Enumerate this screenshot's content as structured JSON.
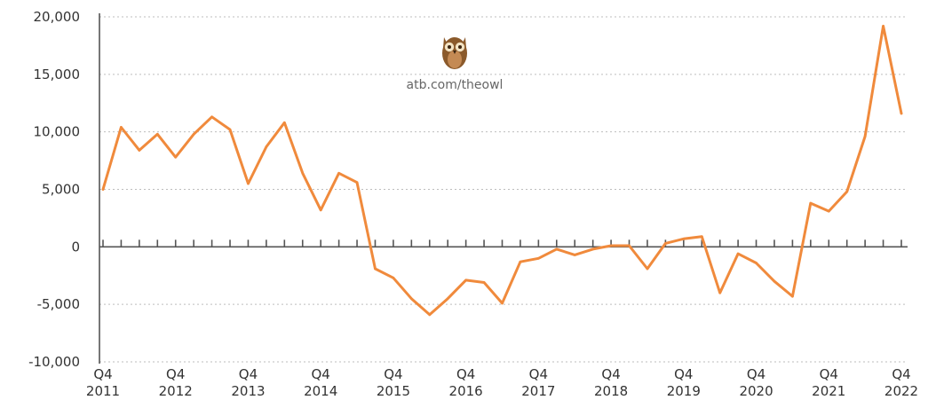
{
  "colors": {
    "series": "#f08a3c",
    "owl_body": "#8b5a2b",
    "owl_belly": "#c48a54",
    "owl_eye": "#f3e3c3"
  },
  "watermark": {
    "text": "atb.com/theowl",
    "icon": "owl-icon"
  },
  "chart_data": {
    "type": "line",
    "title": "",
    "xlabel": "",
    "ylabel": "",
    "ylim": [
      -10000,
      20000
    ],
    "yticks": [
      20000,
      15000,
      10000,
      5000,
      0,
      -5000,
      -10000
    ],
    "ytick_labels": [
      "20,000",
      "15,000",
      "10,000",
      "5,000",
      "0",
      "-5,000",
      "-10,000"
    ],
    "x_labels": [
      {
        "q": "Q4",
        "year": "2011"
      },
      {
        "q": "Q4",
        "year": "2012"
      },
      {
        "q": "Q4",
        "year": "2013"
      },
      {
        "q": "Q4",
        "year": "2014"
      },
      {
        "q": "Q4",
        "year": "2015"
      },
      {
        "q": "Q4",
        "year": "2016"
      },
      {
        "q": "Q4",
        "year": "2017"
      },
      {
        "q": "Q4",
        "year": "2018"
      },
      {
        "q": "Q4",
        "year": "2019"
      },
      {
        "q": "Q4",
        "year": "2020"
      },
      {
        "q": "Q4",
        "year": "2021"
      },
      {
        "q": "Q4",
        "year": "2022"
      }
    ],
    "x": [
      "Q4 2011",
      "Q1 2012",
      "Q2 2012",
      "Q3 2012",
      "Q4 2012",
      "Q1 2013",
      "Q2 2013",
      "Q3 2013",
      "Q4 2013",
      "Q1 2014",
      "Q2 2014",
      "Q3 2014",
      "Q4 2014",
      "Q1 2015",
      "Q2 2015",
      "Q3 2015",
      "Q4 2015",
      "Q1 2016",
      "Q2 2016",
      "Q3 2016",
      "Q4 2016",
      "Q1 2017",
      "Q2 2017",
      "Q3 2017",
      "Q4 2017",
      "Q1 2018",
      "Q2 2018",
      "Q3 2018",
      "Q4 2018",
      "Q1 2019",
      "Q2 2019",
      "Q3 2019",
      "Q4 2019",
      "Q1 2020",
      "Q2 2020",
      "Q3 2020",
      "Q4 2020",
      "Q1 2021",
      "Q2 2021",
      "Q3 2021",
      "Q4 2021",
      "Q1 2022",
      "Q2 2022",
      "Q3 2022",
      "Q4 2022"
    ],
    "series": [
      {
        "values": [
          5000,
          10400,
          8400,
          9800,
          7800,
          9800,
          11300,
          10200,
          5500,
          8700,
          10800,
          6400,
          3200,
          6400,
          5600,
          -1900,
          -2700,
          -4500,
          -5900,
          -4500,
          -2900,
          -3100,
          -4900,
          -1300,
          -1000,
          -200,
          -700,
          -200,
          100,
          100,
          -1900,
          300,
          700,
          900,
          -4000,
          -600,
          -1400,
          -3000,
          -4300,
          3800,
          3100,
          4800,
          9600,
          19200,
          11600
        ]
      }
    ],
    "grid": true,
    "legend": "none"
  }
}
